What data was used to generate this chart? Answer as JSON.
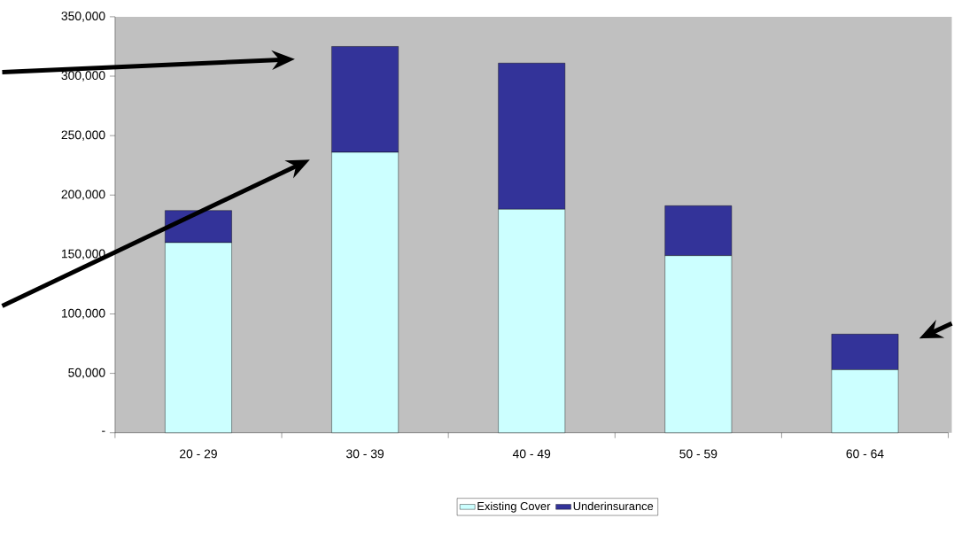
{
  "chart_data": {
    "type": "bar",
    "stacked": true,
    "categories": [
      "20 - 29",
      "30 - 39",
      "40 - 49",
      "50 - 59",
      "60 - 64"
    ],
    "series": [
      {
        "name": "Existing Cover",
        "color": "#ccffff",
        "values": [
          160000,
          236000,
          188000,
          149000,
          53000
        ]
      },
      {
        "name": "Underinsurance",
        "color": "#333399",
        "values": [
          27000,
          89000,
          123000,
          42000,
          30000
        ]
      }
    ],
    "ylim": [
      0,
      350000
    ],
    "yticks": [
      {
        "value": 0,
        "label": "-"
      },
      {
        "value": 50000,
        "label": "50,000"
      },
      {
        "value": 100000,
        "label": "100,000"
      },
      {
        "value": 150000,
        "label": "150,000"
      },
      {
        "value": 200000,
        "label": "200,000"
      },
      {
        "value": 250000,
        "label": "250,000"
      },
      {
        "value": 300000,
        "label": "300,000"
      },
      {
        "value": 350000,
        "label": "350,000"
      }
    ],
    "grid": false,
    "legend": "bottom"
  }
}
